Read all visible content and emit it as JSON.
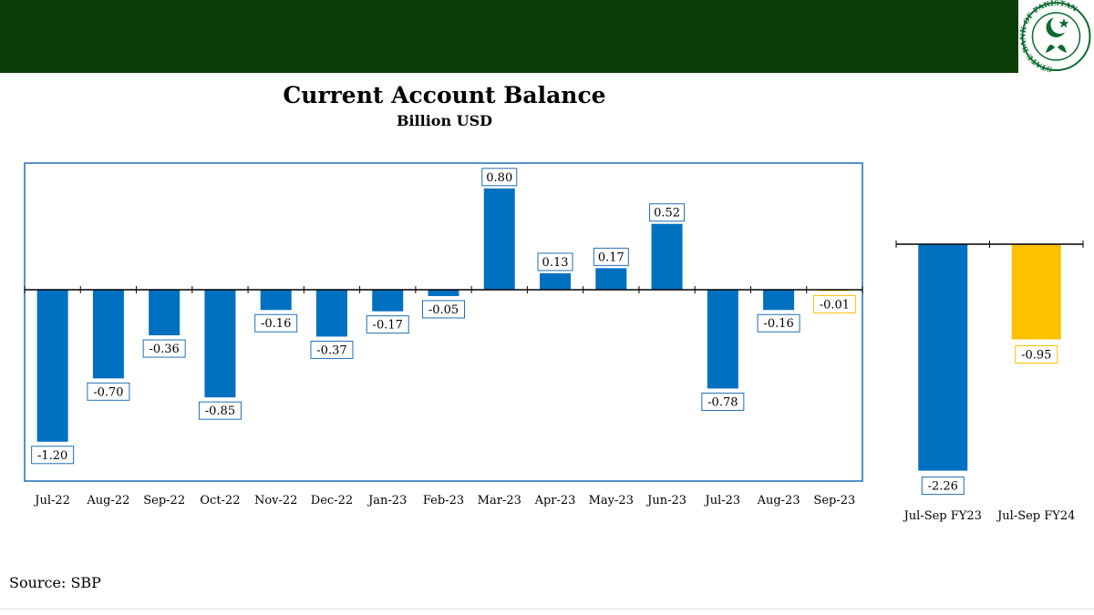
{
  "header": {
    "logo": {
      "icon": "sbp-crescent-star-logo",
      "ring_text": "STATE BANK OF PAKISTAN"
    }
  },
  "colors": {
    "header_green": "#0b3d06",
    "bar_blue": "#0070c0",
    "bar_yellow": "#ffc000",
    "frame_blue": "#1f6fb5"
  },
  "source": "Source: SBP",
  "chart_data": [
    {
      "type": "bar",
      "title": "Current Account Balance",
      "subtitle": "Billion USD",
      "xlabel": "",
      "ylabel": "",
      "categories": [
        "Jul-22",
        "Aug-22",
        "Sep-22",
        "Oct-22",
        "Nov-22",
        "Dec-22",
        "Jan-23",
        "Feb-23",
        "Mar-23",
        "Apr-23",
        "May-23",
        "Jun-23",
        "Jul-23",
        "Aug-23",
        "Sep-23"
      ],
      "values": [
        -1.2,
        -0.7,
        -0.36,
        -0.85,
        -0.16,
        -0.37,
        -0.17,
        -0.05,
        0.8,
        0.13,
        0.17,
        0.52,
        -0.78,
        -0.16,
        -0.01
      ],
      "labels": [
        "-1.20",
        "-0.70",
        "-0.36",
        "-0.85",
        "-0.16",
        "-0.37",
        "-0.17",
        "-0.05",
        "0.80",
        "0.13",
        "0.17",
        "0.52",
        "-0.78",
        "-0.16",
        "-0.01"
      ],
      "highlight_last": true,
      "ylim": [
        -1.45,
        1.0
      ],
      "grid": false
    },
    {
      "type": "bar",
      "title": "",
      "categories": [
        "Jul-Sep FY23",
        "Jul-Sep FY24"
      ],
      "values": [
        -2.26,
        -0.95
      ],
      "labels": [
        "-2.26",
        "-0.95"
      ],
      "colors": [
        "#0070c0",
        "#ffc000"
      ],
      "ylim": [
        -2.6,
        0
      ],
      "grid": false
    }
  ]
}
